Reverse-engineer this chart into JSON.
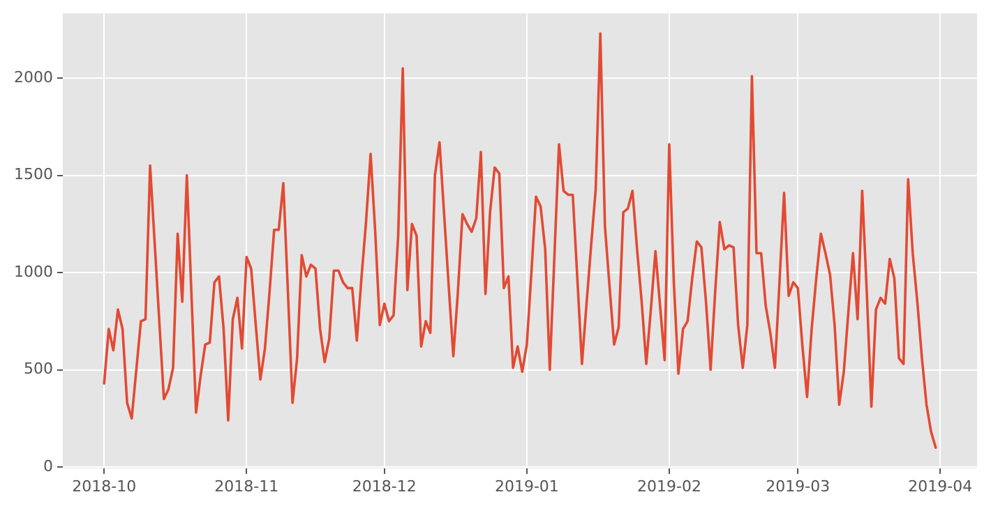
{
  "chart_data": {
    "type": "line",
    "x": [
      "2018-10-01",
      "2018-10-02",
      "2018-10-03",
      "2018-10-04",
      "2018-10-05",
      "2018-10-06",
      "2018-10-07",
      "2018-10-08",
      "2018-10-09",
      "2018-10-10",
      "2018-10-11",
      "2018-10-12",
      "2018-10-13",
      "2018-10-14",
      "2018-10-15",
      "2018-10-16",
      "2018-10-17",
      "2018-10-18",
      "2018-10-19",
      "2018-10-20",
      "2018-10-21",
      "2018-10-22",
      "2018-10-23",
      "2018-10-24",
      "2018-10-25",
      "2018-10-26",
      "2018-10-27",
      "2018-10-28",
      "2018-10-29",
      "2018-10-30",
      "2018-10-31",
      "2018-11-01",
      "2018-11-02",
      "2018-11-03",
      "2018-11-04",
      "2018-11-05",
      "2018-11-06",
      "2018-11-07",
      "2018-11-08",
      "2018-11-09",
      "2018-11-10",
      "2018-11-11",
      "2018-11-12",
      "2018-11-13",
      "2018-11-14",
      "2018-11-15",
      "2018-11-16",
      "2018-11-17",
      "2018-11-18",
      "2018-11-19",
      "2018-11-20",
      "2018-11-21",
      "2018-11-22",
      "2018-11-23",
      "2018-11-24",
      "2018-11-25",
      "2018-11-26",
      "2018-11-27",
      "2018-11-28",
      "2018-11-29",
      "2018-11-30",
      "2018-12-01",
      "2018-12-02",
      "2018-12-03",
      "2018-12-04",
      "2018-12-05",
      "2018-12-06",
      "2018-12-07",
      "2018-12-08",
      "2018-12-09",
      "2018-12-10",
      "2018-12-11",
      "2018-12-12",
      "2018-12-13",
      "2018-12-14",
      "2018-12-15",
      "2018-12-16",
      "2018-12-17",
      "2018-12-18",
      "2018-12-19",
      "2018-12-20",
      "2018-12-21",
      "2018-12-22",
      "2018-12-23",
      "2018-12-24",
      "2018-12-25",
      "2018-12-26",
      "2018-12-27",
      "2018-12-28",
      "2018-12-29",
      "2018-12-30",
      "2018-12-31",
      "2019-01-01",
      "2019-01-02",
      "2019-01-03",
      "2019-01-04",
      "2019-01-05",
      "2019-01-06",
      "2019-01-07",
      "2019-01-08",
      "2019-01-09",
      "2019-01-10",
      "2019-01-11",
      "2019-01-12",
      "2019-01-13",
      "2019-01-14",
      "2019-01-15",
      "2019-01-16",
      "2019-01-17",
      "2019-01-18",
      "2019-01-19",
      "2019-01-20",
      "2019-01-21",
      "2019-01-22",
      "2019-01-23",
      "2019-01-24",
      "2019-01-25",
      "2019-01-26",
      "2019-01-27",
      "2019-01-28",
      "2019-01-29",
      "2019-01-30",
      "2019-01-31",
      "2019-02-01",
      "2019-02-02",
      "2019-02-03",
      "2019-02-04",
      "2019-02-05",
      "2019-02-06",
      "2019-02-07",
      "2019-02-08",
      "2019-02-09",
      "2019-02-10",
      "2019-02-11",
      "2019-02-12",
      "2019-02-13",
      "2019-02-14",
      "2019-02-15",
      "2019-02-16",
      "2019-02-17",
      "2019-02-18",
      "2019-02-19",
      "2019-02-20",
      "2019-02-21",
      "2019-02-22",
      "2019-02-23",
      "2019-02-24",
      "2019-02-25",
      "2019-02-26",
      "2019-02-27",
      "2019-02-28",
      "2019-03-01",
      "2019-03-02",
      "2019-03-03",
      "2019-03-04",
      "2019-03-05",
      "2019-03-06",
      "2019-03-07",
      "2019-03-08",
      "2019-03-09",
      "2019-03-10",
      "2019-03-11",
      "2019-03-12",
      "2019-03-13",
      "2019-03-14",
      "2019-03-15",
      "2019-03-16",
      "2019-03-17",
      "2019-03-18",
      "2019-03-19",
      "2019-03-20",
      "2019-03-21",
      "2019-03-22",
      "2019-03-23",
      "2019-03-24",
      "2019-03-25",
      "2019-03-26",
      "2019-03-27",
      "2019-03-28",
      "2019-03-29",
      "2019-03-30",
      "2019-03-31"
    ],
    "values": [
      430,
      710,
      600,
      810,
      710,
      330,
      250,
      500,
      750,
      760,
      1550,
      1150,
      750,
      350,
      400,
      510,
      1200,
      850,
      1500,
      890,
      280,
      470,
      630,
      640,
      950,
      980,
      710,
      240,
      760,
      870,
      610,
      1080,
      1020,
      730,
      450,
      610,
      900,
      1220,
      1220,
      1460,
      900,
      330,
      560,
      1090,
      980,
      1040,
      1020,
      710,
      540,
      660,
      1010,
      1010,
      950,
      920,
      920,
      650,
      970,
      1260,
      1610,
      1210,
      730,
      840,
      750,
      780,
      1190,
      2050,
      910,
      1250,
      1190,
      620,
      750,
      690,
      1500,
      1670,
      1300,
      930,
      570,
      900,
      1300,
      1250,
      1210,
      1280,
      1620,
      890,
      1310,
      1540,
      1510,
      920,
      980,
      510,
      620,
      490,
      630,
      1000,
      1390,
      1340,
      1120,
      500,
      1080,
      1660,
      1420,
      1400,
      1400,
      970,
      530,
      840,
      1140,
      1430,
      2230,
      1240,
      930,
      630,
      720,
      1310,
      1330,
      1420,
      1120,
      850,
      530,
      810,
      1110,
      830,
      550,
      1660,
      950,
      480,
      710,
      750,
      970,
      1160,
      1130,
      850,
      500,
      900,
      1260,
      1120,
      1140,
      1130,
      730,
      510,
      730,
      2010,
      1100,
      1100,
      830,
      690,
      510,
      950,
      1410,
      880,
      950,
      920,
      620,
      360,
      710,
      970,
      1200,
      1100,
      990,
      730,
      320,
      490,
      800,
      1100,
      760,
      1420,
      900,
      310,
      810,
      870,
      840,
      1070,
      970,
      560,
      530,
      1480,
      1100,
      850,
      560,
      320,
      180,
      100
    ],
    "color": "#e24a33",
    "xlim": [
      "2018-09-22",
      "2019-04-09"
    ],
    "xticks": [
      {
        "value": "2018-10-01",
        "label": "2018-10"
      },
      {
        "value": "2018-11-01",
        "label": "2018-11"
      },
      {
        "value": "2018-12-01",
        "label": "2018-12"
      },
      {
        "value": "2019-01-01",
        "label": "2019-01"
      },
      {
        "value": "2019-02-01",
        "label": "2019-02"
      },
      {
        "value": "2019-03-01",
        "label": "2019-03"
      },
      {
        "value": "2019-04-01",
        "label": "2019-04"
      }
    ],
    "ylim": [
      -7,
      2333
    ],
    "yticks": [
      0,
      500,
      1000,
      1500,
      2000
    ],
    "grid": true,
    "marker": "none",
    "line_style": "solid"
  }
}
